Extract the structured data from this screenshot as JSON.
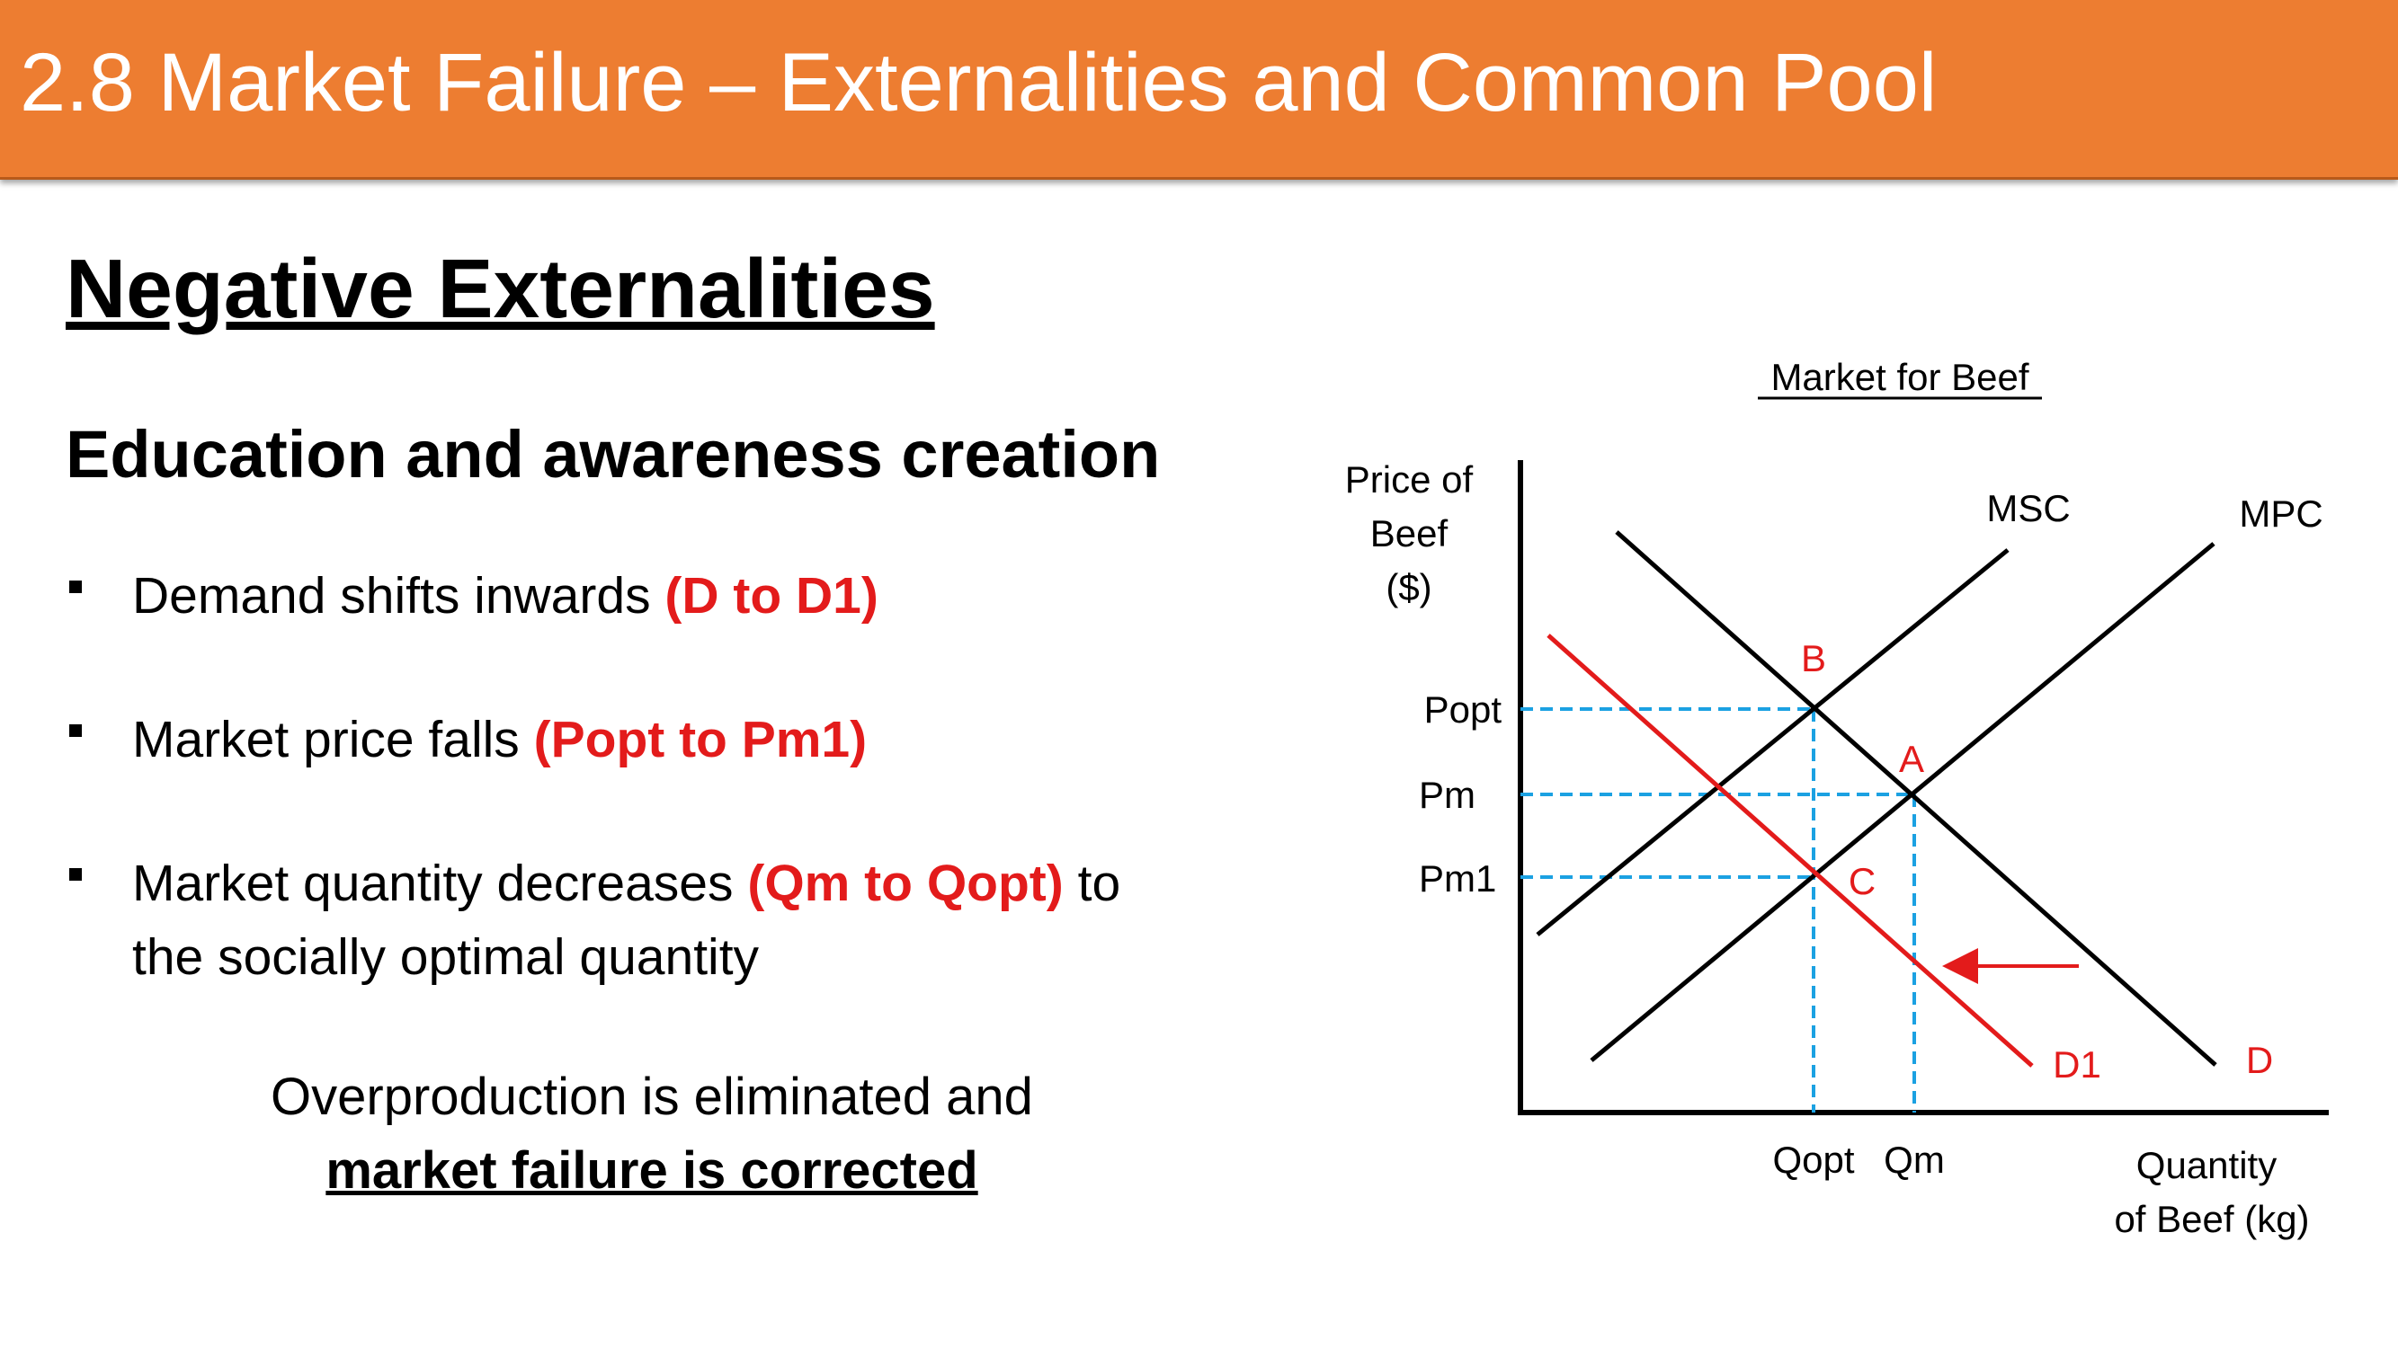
{
  "header": {
    "title": "2.8 Market Failure – Externalities and Common Pool"
  },
  "section_title": "Negative Externalities",
  "subtitle": "Education and awareness creation",
  "bullets": [
    {
      "before": "Demand shifts inwards ",
      "highlight": "(D to D1)",
      "after": "",
      "line2": ""
    },
    {
      "before": "Market price falls ",
      "highlight": "(Popt to Pm1)",
      "after": "",
      "line2": ""
    },
    {
      "before": "Market quantity decreases ",
      "highlight": "(Qm to Qopt)",
      "after": " to",
      "line2": "the socially optimal quantity"
    }
  ],
  "conclusion": {
    "line1": "Overproduction is eliminated and",
    "line2": "market failure is corrected"
  },
  "diagram": {
    "title": "Market for Beef",
    "y_axis_label": [
      "Price of",
      "Beef",
      "($)"
    ],
    "x_axis_label": [
      "Quantity",
      "of Beef (kg)"
    ],
    "price_labels": {
      "popt": "Popt",
      "pm": "Pm",
      "pm1": "Pm1"
    },
    "quantity_labels": {
      "qopt": "Qopt",
      "qm": "Qm"
    },
    "curve_labels": {
      "msc": "MSC",
      "mpc": "MPC",
      "d": "D",
      "d1": "D1"
    },
    "point_labels": {
      "a": "A",
      "b": "B",
      "c": "C"
    },
    "colors": {
      "shifted_demand": "#E31B1B",
      "guide_lines": "#1BA1E2",
      "accent": "#ED7D31"
    }
  }
}
